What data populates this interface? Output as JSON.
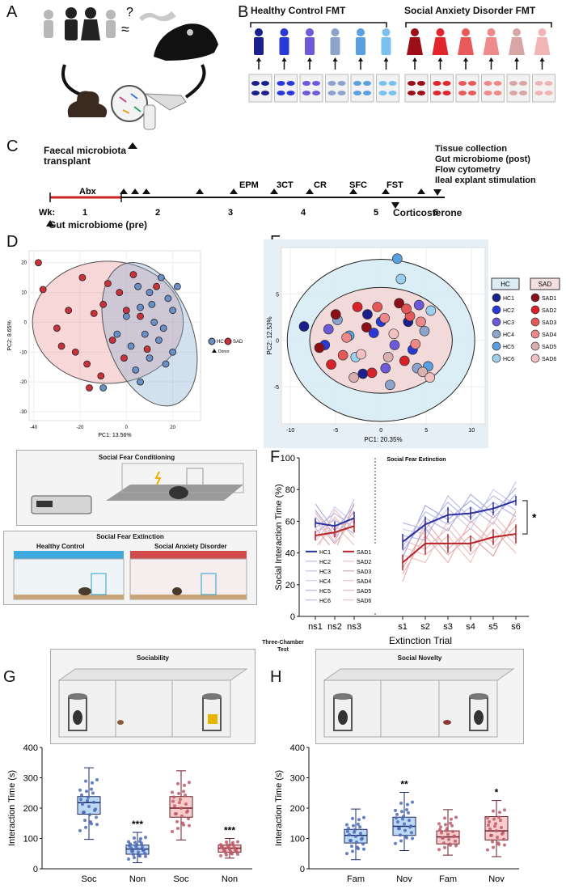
{
  "panels": {
    "a": "A",
    "b": "B",
    "c": "C",
    "d": "D",
    "e": "E",
    "f": "F",
    "g": "G",
    "h": "H"
  },
  "panel_a": {
    "approx_symbol": "≈",
    "question": "?"
  },
  "panel_b": {
    "hc_title": "Healthy Control FMT",
    "sad_title": "Social Anxiety Disorder FMT",
    "hc_colors": [
      "#1a1f8c",
      "#2a38d6",
      "#6c5ad8",
      "#8da3cc",
      "#5aa0e0",
      "#7cc0ee"
    ],
    "sad_colors": [
      "#9a0f18",
      "#e2252b",
      "#e85a5a",
      "#ef8a8a",
      "#d9a6a6",
      "#f2b5b5"
    ]
  },
  "panel_c": {
    "fmt_label_line1": "Faecal microbiota",
    "fmt_label_line2": "transplant",
    "abx": "Abx",
    "events": [
      "EPM",
      "3CT",
      "CR",
      "SFC",
      "FST"
    ],
    "wk_label": "Wk:",
    "weeks": [
      "1",
      "2",
      "3",
      "4",
      "5",
      "6"
    ],
    "gut_pre": "Gut microbiome (pre)",
    "corticosterone": "Corticosterone",
    "end_list": [
      "Tissue collection",
      "Gut microbiome (post)",
      "Flow cytometry",
      "Ileal explant stimulation"
    ]
  },
  "panel_d": {
    "xlabel": "PC1: 13.56%",
    "ylabel": "PC2: 8.65%",
    "xticks": [
      "-40",
      "-20",
      "0",
      "20"
    ],
    "yticks": [
      "20",
      "10",
      "0",
      "-10",
      "-20",
      "-30"
    ],
    "legend_hc": "HC",
    "legend_sad": "SAD",
    "legend_donor": "Donor",
    "chart_data": {
      "type": "scatter",
      "series": [
        {
          "name": "HC",
          "points": [
            [
              5,
              12
            ],
            [
              10,
              10
            ],
            [
              15,
              15
            ],
            [
              18,
              8
            ],
            [
              20,
              4
            ],
            [
              12,
              0
            ],
            [
              8,
              -4
            ],
            [
              14,
              -6
            ],
            [
              10,
              -12
            ],
            [
              4,
              -16
            ],
            [
              2,
              -8
            ],
            [
              6,
              5
            ],
            [
              16,
              -2
            ],
            [
              20,
              -10
            ],
            [
              0,
              2
            ],
            [
              -4,
              -4
            ],
            [
              11,
              6
            ],
            [
              17,
              -14
            ],
            [
              22,
              12
            ],
            [
              6,
              -20
            ],
            [
              -10,
              -22
            ]
          ]
        },
        {
          "name": "SAD",
          "points": [
            [
              -38,
              20
            ],
            [
              -36,
              11
            ],
            [
              -30,
              -2
            ],
            [
              -28,
              -8
            ],
            [
              -25,
              4
            ],
            [
              -22,
              -10
            ],
            [
              -19,
              15
            ],
            [
              -17,
              -14
            ],
            [
              -14,
              3
            ],
            [
              -11,
              -18
            ],
            [
              -8,
              13
            ],
            [
              -6,
              -6
            ],
            [
              -3,
              10
            ],
            [
              -1,
              -12
            ],
            [
              3,
              16
            ],
            [
              6,
              2
            ],
            [
              9,
              -9
            ],
            [
              13,
              12
            ],
            [
              -16,
              -22
            ],
            [
              -10,
              6
            ],
            [
              0,
              4
            ]
          ]
        }
      ]
    }
  },
  "panel_e": {
    "xlabel": "PC1: 20.35%",
    "ylabel": "PC2: 12.53%",
    "xticks": [
      "-10",
      "-5",
      "0",
      "5",
      "10"
    ],
    "yticks": [
      "5",
      "0",
      "-5"
    ],
    "hc_legend_title": "HC",
    "sad_legend_title": "SAD",
    "hc_items": [
      "HC1",
      "HC2",
      "HC3",
      "HC4",
      "HC5",
      "HC6"
    ],
    "sad_items": [
      "SAD1",
      "SAD2",
      "SAD3",
      "SAD4",
      "SAD5",
      "SAD6"
    ],
    "chart_data": {
      "type": "scatter",
      "series": [
        {
          "name": "HC",
          "points": [
            [
              -8.5,
              1.5
            ],
            [
              -6.2,
              -0.5
            ],
            [
              -5.8,
              1.2
            ],
            [
              -4.8,
              2.2
            ],
            [
              -3.5,
              0.5
            ],
            [
              -2.8,
              -1.8
            ],
            [
              -1.5,
              2.8
            ],
            [
              0,
              2
            ],
            [
              0.5,
              -3
            ],
            [
              1,
              -4.8
            ],
            [
              1.8,
              8.8
            ],
            [
              2.2,
              6.6
            ],
            [
              3,
              2
            ],
            [
              3.5,
              -1
            ],
            [
              4.2,
              3.8
            ],
            [
              4.8,
              1
            ],
            [
              5.2,
              -2.8
            ],
            [
              5.5,
              3.2
            ],
            [
              -2,
              -3.6
            ],
            [
              -0.8,
              0.8
            ],
            [
              1.5,
              -0.5
            ],
            [
              4,
              -3
            ]
          ]
        },
        {
          "name": "SAD",
          "points": [
            [
              -6.8,
              -0.8
            ],
            [
              -5.5,
              -2.6
            ],
            [
              -4.2,
              -1.6
            ],
            [
              -3.8,
              0.3
            ],
            [
              -3,
              -4
            ],
            [
              -2.2,
              -1.5
            ],
            [
              -1.6,
              1.4
            ],
            [
              -1,
              -3.5
            ],
            [
              -0.4,
              3.6
            ],
            [
              0.4,
              2.4
            ],
            [
              0.8,
              -1.8
            ],
            [
              1.4,
              0.7
            ],
            [
              2,
              4
            ],
            [
              2.6,
              -2.2
            ],
            [
              3.2,
              2.6
            ],
            [
              3.8,
              -0.4
            ],
            [
              4.6,
              -3.4
            ],
            [
              5.4,
              -4
            ],
            [
              -5,
              2.8
            ],
            [
              -2.6,
              3.6
            ],
            [
              2.8,
              3.4
            ],
            [
              4.4,
              2
            ]
          ]
        }
      ]
    }
  },
  "panel_d_schematic": {
    "sfc_title": "Social Fear Conditioning",
    "sfe_title": "Social Fear Extinction",
    "hc_label": "Healthy Control",
    "sad_label": "Social Anxiety Disorder"
  },
  "panel_f": {
    "title": "Social Fear Extinction",
    "ylabel": "Social Interaction Time (%)",
    "xlabel": "Extinction Trial",
    "yticks": [
      "100",
      "80",
      "60",
      "40",
      "20",
      "0"
    ],
    "significance": "*",
    "legend_hc": [
      "HC1",
      "HC2",
      "HC3",
      "HC4",
      "HC5",
      "HC6"
    ],
    "legend_sad": [
      "SAD1",
      "SAD2",
      "SAD3",
      "SAD4",
      "SAD5",
      "SAD6"
    ],
    "chart_data": {
      "type": "line",
      "categories": [
        "ns1",
        "ns2",
        "ns3",
        "s1",
        "s2",
        "s3",
        "s4",
        "s5",
        "s6"
      ],
      "ylim": [
        0,
        100
      ],
      "series": [
        {
          "name": "HC mean",
          "values": [
            59,
            57,
            62,
            47,
            58,
            64,
            65,
            68,
            73
          ],
          "err": [
            3,
            3,
            4,
            5,
            5,
            5,
            4,
            4,
            3
          ]
        },
        {
          "name": "SAD mean",
          "values": [
            51,
            53,
            57,
            34,
            46,
            46,
            46,
            50,
            52
          ],
          "err": [
            3,
            3,
            4,
            5,
            7,
            6,
            5,
            5,
            6
          ]
        }
      ]
    }
  },
  "three_chamber": {
    "title_line1": "Three-Chamber",
    "title_line2": "Test",
    "left": "Sociability",
    "right": "Social Novelty"
  },
  "panel_g": {
    "ylabel": "Interaction Time (s)",
    "yticks": [
      "400",
      "300",
      "200",
      "100",
      "0"
    ],
    "chart_data": {
      "type": "box",
      "categories": [
        "Soc",
        "Non",
        "Soc",
        "Non"
      ],
      "groups": [
        "HC",
        "HC",
        "SAD",
        "SAD"
      ],
      "box": [
        {
          "min": 97,
          "q1": 180,
          "median": 218,
          "q3": 238,
          "max": 333
        },
        {
          "min": 20,
          "q1": 48,
          "median": 65,
          "q3": 78,
          "max": 120
        },
        {
          "min": 95,
          "q1": 170,
          "median": 200,
          "q3": 238,
          "max": 323
        },
        {
          "min": 35,
          "q1": 55,
          "median": 68,
          "q3": 78,
          "max": 100
        }
      ],
      "annotations": [
        "",
        "***",
        "",
        "***"
      ],
      "ylim": [
        0,
        400
      ]
    }
  },
  "panel_h": {
    "ylabel": "Interaction Time (s)",
    "yticks": [
      "400",
      "300",
      "200",
      "100",
      "0"
    ],
    "chart_data": {
      "type": "box",
      "categories": [
        "Fam",
        "Nov",
        "Fam",
        "Nov"
      ],
      "groups": [
        "HC",
        "HC",
        "SAD",
        "SAD"
      ],
      "box": [
        {
          "min": 30,
          "q1": 85,
          "median": 110,
          "q3": 130,
          "max": 197
        },
        {
          "min": 60,
          "q1": 110,
          "median": 140,
          "q3": 170,
          "max": 252
        },
        {
          "min": 45,
          "q1": 82,
          "median": 105,
          "q3": 125,
          "max": 195
        },
        {
          "min": 40,
          "q1": 95,
          "median": 125,
          "q3": 172,
          "max": 225
        }
      ],
      "annotations": [
        "",
        "**",
        "",
        "*"
      ],
      "ylim": [
        0,
        400
      ]
    }
  }
}
